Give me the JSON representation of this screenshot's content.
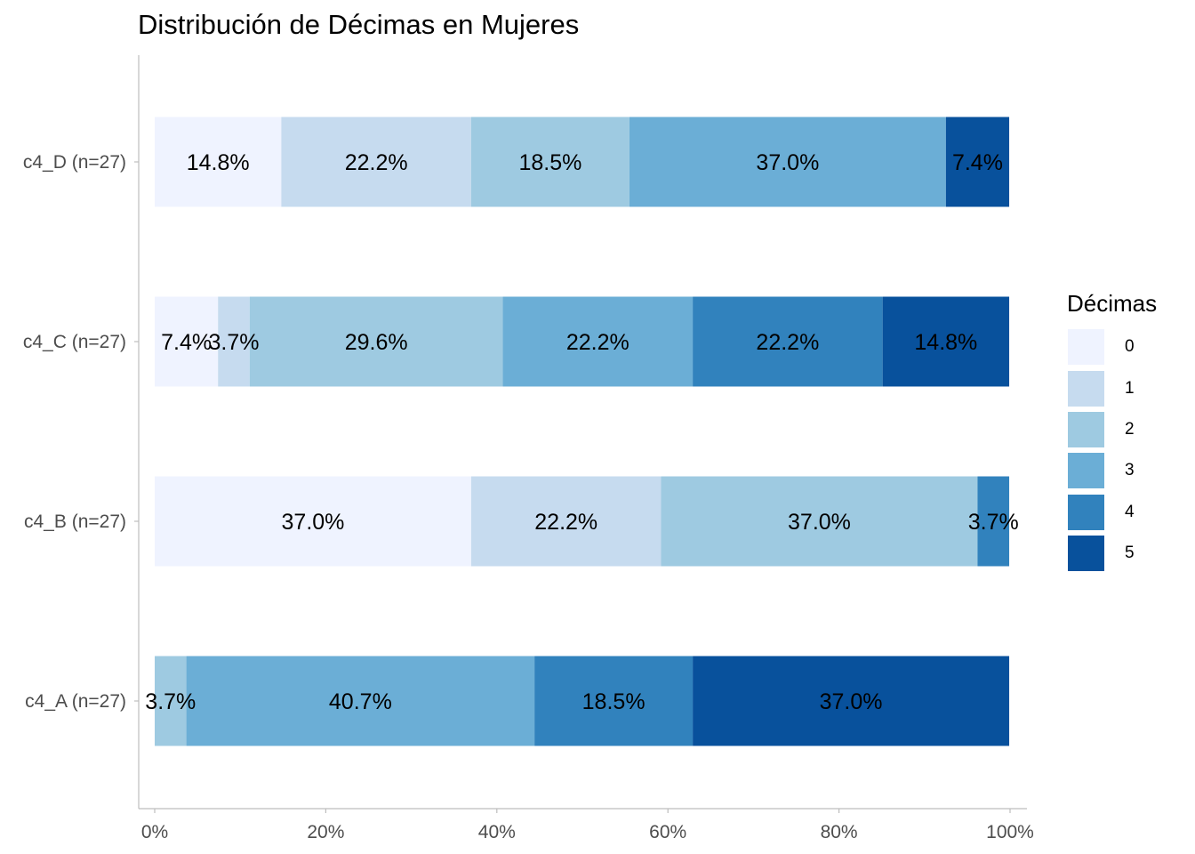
{
  "chart_data": {
    "type": "bar",
    "orientation": "horizontal",
    "stacked": "percent",
    "title": "Distribución de Décimas en Mujeres",
    "xlabel": "",
    "ylabel": "",
    "xlim": [
      0,
      100
    ],
    "x_ticks": [
      "0%",
      "20%",
      "40%",
      "60%",
      "80%",
      "100%"
    ],
    "grid": false,
    "legend_position": "right",
    "legend_title": "Décimas",
    "categories": [
      "c4_D (n=27)",
      "c4_C (n=27)",
      "c4_B (n=27)",
      "c4_A (n=27)"
    ],
    "series": [
      {
        "name": "0",
        "color": "#eff3ff",
        "values": [
          14.8,
          7.4,
          37.0,
          0
        ],
        "labels": [
          "14.8%",
          "7.4%",
          "37.0%",
          ""
        ]
      },
      {
        "name": "1",
        "color": "#c6dbef",
        "values": [
          22.2,
          3.7,
          22.2,
          0
        ],
        "labels": [
          "22.2%",
          "3.7%",
          "22.2%",
          ""
        ]
      },
      {
        "name": "2",
        "color": "#9ecae1",
        "values": [
          18.5,
          29.6,
          37.0,
          3.7
        ],
        "labels": [
          "18.5%",
          "29.6%",
          "37.0%",
          "3.7%"
        ]
      },
      {
        "name": "3",
        "color": "#6baed6",
        "values": [
          37.0,
          22.2,
          0,
          40.7
        ],
        "labels": [
          "37.0%",
          "22.2%",
          "",
          "40.7%"
        ]
      },
      {
        "name": "4",
        "color": "#3182bd",
        "values": [
          0,
          22.2,
          3.7,
          18.5
        ],
        "labels": [
          "",
          "22.2%",
          "3.7%",
          "18.5%"
        ]
      },
      {
        "name": "5",
        "color": "#08519c",
        "values": [
          7.4,
          14.8,
          0,
          37.0
        ],
        "labels": [
          "7.4%",
          "14.8%",
          "",
          "37.0%"
        ]
      }
    ]
  }
}
